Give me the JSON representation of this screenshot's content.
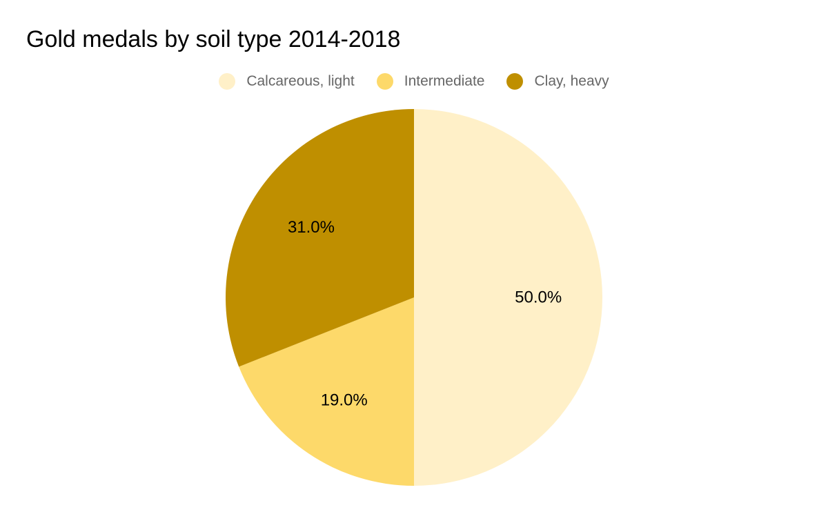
{
  "chart_data": {
    "type": "pie",
    "title": "Gold medals by soil type 2014-2018",
    "legend_position": "top",
    "slices": [
      {
        "label": "Calcareous, light",
        "value": 50.0,
        "display": "50.0%",
        "color": "#FFF0C8"
      },
      {
        "label": "Intermediate",
        "value": 19.0,
        "display": "19.0%",
        "color": "#FDD96A"
      },
      {
        "label": "Clay, heavy",
        "value": 31.0,
        "display": "31.0%",
        "color": "#BF8F00"
      }
    ]
  }
}
